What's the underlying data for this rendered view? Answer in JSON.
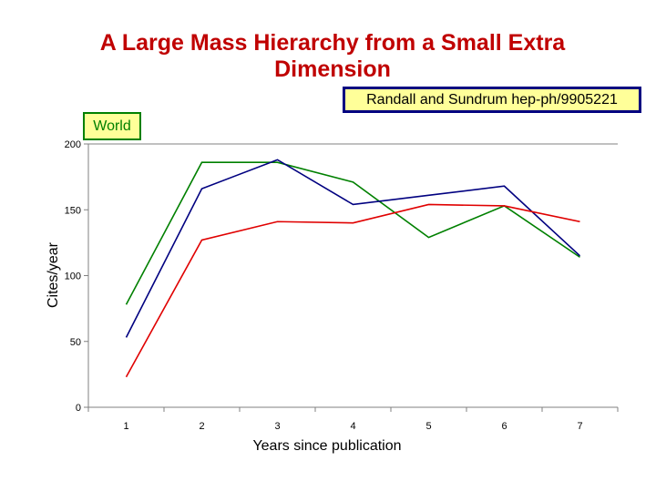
{
  "slide": {
    "title_line1": "A Large Mass Hierarchy from a Small Extra",
    "title_line2": "Dimension",
    "reference": "Randall and Sundrum  hep-ph/9905221"
  },
  "chart_data": {
    "type": "line",
    "title": "",
    "xlabel": "Years since publication",
    "ylabel": "Cites/year",
    "ylim": [
      0,
      200
    ],
    "yticks": [
      0,
      50,
      100,
      150,
      200
    ],
    "grid": false,
    "legend_label": "World",
    "categories": [
      "1",
      "2",
      "3",
      "4",
      "5",
      "6",
      "7"
    ],
    "series": [
      {
        "name": "World",
        "color": "#008000",
        "values": [
          78,
          186,
          186,
          171,
          129,
          153,
          114
        ]
      },
      {
        "name": "",
        "color": "#000080",
        "values": [
          53,
          166,
          188,
          154,
          161,
          168,
          115
        ]
      },
      {
        "name": "",
        "color": "#e00000",
        "values": [
          23,
          127,
          141,
          140,
          154,
          153,
          141
        ]
      }
    ]
  }
}
